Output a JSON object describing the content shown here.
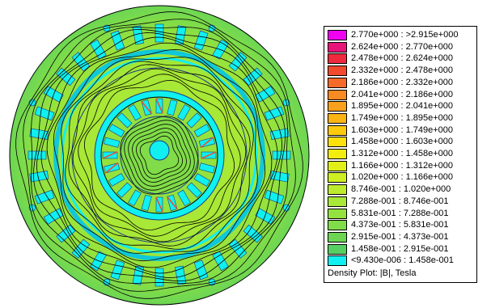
{
  "legend": {
    "caption": "Density Plot: |B|, Tesla",
    "entries": [
      {
        "label": "2.770e+000 : >2.915e+000",
        "color": "#f000f0"
      },
      {
        "label": "2.624e+000 : 2.770e+000",
        "color": "#e8147a"
      },
      {
        "label": "2.478e+000 : 2.624e+000",
        "color": "#ee2a3c"
      },
      {
        "label": "2.332e+000 : 2.478e+000",
        "color": "#f24a2c"
      },
      {
        "label": "2.186e+000 : 2.332e+000",
        "color": "#f56a28"
      },
      {
        "label": "2.041e+000 : 2.186e+000",
        "color": "#f78a22"
      },
      {
        "label": "1.895e+000 : 2.041e+000",
        "color": "#f9a01c"
      },
      {
        "label": "1.749e+000 : 1.895e+000",
        "color": "#fbb414"
      },
      {
        "label": "1.603e+000 : 1.749e+000",
        "color": "#fdca0c"
      },
      {
        "label": "1.458e+000 : 1.603e+000",
        "color": "#fee00a"
      },
      {
        "label": "1.312e+000 : 1.458e+000",
        "color": "#f2ec10"
      },
      {
        "label": "1.166e+000 : 1.312e+000",
        "color": "#e2ee18"
      },
      {
        "label": "1.020e+000 : 1.166e+000",
        "color": "#cfee22"
      },
      {
        "label": "8.746e-001 : 1.020e+000",
        "color": "#bcec2c"
      },
      {
        "label": "7.288e-001 : 8.746e-001",
        "color": "#a8e836"
      },
      {
        "label": "5.831e-001 : 7.288e-001",
        "color": "#94e23e"
      },
      {
        "label": "4.373e-001 : 5.831e-001",
        "color": "#80dc48"
      },
      {
        "label": "2.915e-001 : 4.373e-001",
        "color": "#6cd654"
      },
      {
        "label": "1.458e-001 : 2.915e-001",
        "color": "#56cf62"
      },
      {
        "label": "<9.430e-006 : 1.458e-001",
        "color": "#10f0f0"
      }
    ]
  },
  "plot": {
    "colors": {
      "air": "#10f0f0",
      "low_field": "#56cf62",
      "mid_field": "#a8e836",
      "high_field": "#f24a2c",
      "peak_field": "#f000f0",
      "flux_line": "#000000",
      "outline": "#1a3a8a"
    }
  }
}
